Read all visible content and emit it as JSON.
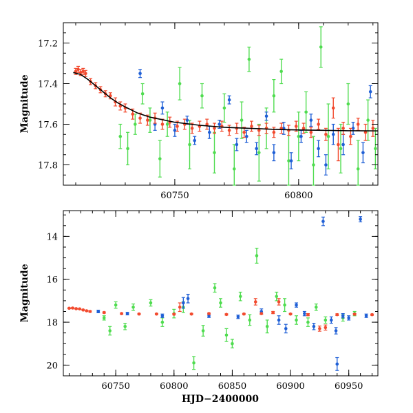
{
  "chart_data": [
    {
      "type": "scatter",
      "panel": "top",
      "title": "",
      "ylabel": "Magnitude",
      "xlabel": "",
      "xlim": [
        60705,
        60832
      ],
      "ylim": [
        17.9,
        17.1
      ],
      "inverted_y": true,
      "x_ticks": [
        60750,
        60800
      ],
      "y_ticks": [
        17.2,
        17.4,
        17.6,
        17.8
      ],
      "colors": {
        "blue": "#1f5fd6",
        "green": "#4fdc4f",
        "red": "#f24a2e",
        "curve": "#000000"
      },
      "series": [
        {
          "name": "model-curve",
          "kind": "line",
          "points": [
            [
              60709,
              17.345
            ],
            [
              60712,
              17.355
            ],
            [
              60715,
              17.38
            ],
            [
              60718,
              17.41
            ],
            [
              60721,
              17.44
            ],
            [
              60724,
              17.47
            ],
            [
              60727,
              17.495
            ],
            [
              60730,
              17.515
            ],
            [
              60735,
              17.545
            ],
            [
              60740,
              17.565
            ],
            [
              60750,
              17.59
            ],
            [
              60760,
              17.605
            ],
            [
              60770,
              17.615
            ],
            [
              60780,
              17.62
            ],
            [
              60790,
              17.625
            ],
            [
              60800,
              17.628
            ],
            [
              60810,
              17.63
            ],
            [
              60820,
              17.632
            ],
            [
              60832,
              17.633
            ]
          ]
        },
        {
          "name": "blue",
          "kind": "errorbar",
          "points": [
            [
              60736,
              17.35,
              0.02
            ],
            [
              60742,
              17.6,
              0.03
            ],
            [
              60745,
              17.52,
              0.03
            ],
            [
              60750,
              17.63,
              0.03
            ],
            [
              60755,
              17.58,
              0.02
            ],
            [
              60758,
              17.68,
              0.02
            ],
            [
              60764,
              17.64,
              0.03
            ],
            [
              60768,
              17.6,
              0.02
            ],
            [
              60772,
              17.48,
              0.02
            ],
            [
              60775,
              17.7,
              0.03
            ],
            [
              60779,
              17.66,
              0.03
            ],
            [
              60783,
              17.72,
              0.03
            ],
            [
              60787,
              17.56,
              0.02
            ],
            [
              60790,
              17.74,
              0.04
            ],
            [
              60794,
              17.62,
              0.03
            ],
            [
              60797,
              17.78,
              0.04
            ],
            [
              60801,
              17.66,
              0.03
            ],
            [
              60805,
              17.58,
              0.03
            ],
            [
              60808,
              17.72,
              0.04
            ],
            [
              60811,
              17.8,
              0.05
            ],
            [
              60814,
              17.65,
              0.05
            ],
            [
              60818,
              17.7,
              0.05
            ],
            [
              60822,
              17.62,
              0.03
            ],
            [
              60826,
              17.74,
              0.05
            ],
            [
              60829,
              17.44,
              0.03
            ]
          ]
        },
        {
          "name": "green",
          "kind": "errorbar",
          "points": [
            [
              60728,
              17.66,
              0.06
            ],
            [
              60731,
              17.72,
              0.08
            ],
            [
              60734,
              17.6,
              0.05
            ],
            [
              60737,
              17.45,
              0.05
            ],
            [
              60740,
              17.58,
              0.06
            ],
            [
              60744,
              17.77,
              0.09
            ],
            [
              60747,
              17.6,
              0.06
            ],
            [
              60752,
              17.4,
              0.08
            ],
            [
              60756,
              17.7,
              0.12
            ],
            [
              60761,
              17.46,
              0.06
            ],
            [
              60766,
              17.74,
              0.1
            ],
            [
              60770,
              17.52,
              0.07
            ],
            [
              60774,
              17.82,
              0.12
            ],
            [
              60777,
              17.58,
              0.09
            ],
            [
              60780,
              17.28,
              0.06
            ],
            [
              60784,
              17.74,
              0.14
            ],
            [
              60787,
              17.62,
              0.1
            ],
            [
              60790,
              17.46,
              0.08
            ],
            [
              60793,
              17.34,
              0.06
            ],
            [
              60796,
              17.78,
              0.15
            ],
            [
              60800,
              17.66,
              0.12
            ],
            [
              60803,
              17.54,
              0.1
            ],
            [
              60806,
              17.8,
              0.14
            ],
            [
              60809,
              17.22,
              0.1
            ],
            [
              60812,
              17.66,
              0.16
            ],
            [
              60817,
              17.72,
              0.12
            ],
            [
              60820,
              17.5,
              0.1
            ],
            [
              60824,
              17.82,
              0.14
            ],
            [
              60828,
              17.58,
              0.1
            ],
            [
              60831,
              17.72,
              0.1
            ]
          ]
        },
        {
          "name": "red",
          "kind": "errorbar",
          "points": [
            [
              60710,
              17.34,
              0.015
            ],
            [
              60711,
              17.33,
              0.015
            ],
            [
              60712,
              17.345,
              0.015
            ],
            [
              60713,
              17.34,
              0.015
            ],
            [
              60714,
              17.35,
              0.015
            ],
            [
              60716,
              17.39,
              0.015
            ],
            [
              60718,
              17.41,
              0.015
            ],
            [
              60720,
              17.43,
              0.015
            ],
            [
              60722,
              17.45,
              0.015
            ],
            [
              60724,
              17.46,
              0.015
            ],
            [
              60726,
              17.49,
              0.02
            ],
            [
              60728,
              17.51,
              0.02
            ],
            [
              60730,
              17.52,
              0.02
            ],
            [
              60733,
              17.55,
              0.025
            ],
            [
              60736,
              17.57,
              0.025
            ],
            [
              60739,
              17.58,
              0.025
            ],
            [
              60742,
              17.57,
              0.025
            ],
            [
              60745,
              17.6,
              0.025
            ],
            [
              60748,
              17.59,
              0.025
            ],
            [
              60751,
              17.61,
              0.025
            ],
            [
              60754,
              17.6,
              0.025
            ],
            [
              60757,
              17.62,
              0.025
            ],
            [
              60760,
              17.61,
              0.025
            ],
            [
              60763,
              17.6,
              0.025
            ],
            [
              60766,
              17.62,
              0.025
            ],
            [
              60769,
              17.61,
              0.025
            ],
            [
              60772,
              17.63,
              0.025
            ],
            [
              60775,
              17.62,
              0.025
            ],
            [
              60778,
              17.64,
              0.025
            ],
            [
              60781,
              17.61,
              0.025
            ],
            [
              60784,
              17.63,
              0.025
            ],
            [
              60787,
              17.62,
              0.025
            ],
            [
              60790,
              17.64,
              0.025
            ],
            [
              60793,
              17.62,
              0.025
            ],
            [
              60796,
              17.63,
              0.025
            ],
            [
              60799,
              17.61,
              0.025
            ],
            [
              60802,
              17.62,
              0.025
            ],
            [
              60805,
              17.64,
              0.025
            ],
            [
              60808,
              17.6,
              0.025
            ],
            [
              60811,
              17.65,
              0.03
            ],
            [
              60814,
              17.52,
              0.05
            ],
            [
              60816,
              17.7,
              0.08
            ],
            [
              60818,
              17.62,
              0.03
            ],
            [
              60821,
              17.66,
              0.04
            ],
            [
              60824,
              17.6,
              0.03
            ],
            [
              60827,
              17.64,
              0.04
            ],
            [
              60830,
              17.62,
              0.04
            ]
          ]
        }
      ]
    },
    {
      "type": "scatter",
      "panel": "bottom",
      "title": "",
      "ylabel": "Magnitude",
      "xlabel": "HJD−2400000",
      "xlim": [
        60705,
        60975
      ],
      "ylim": [
        20.5,
        12.8
      ],
      "inverted_y": true,
      "x_ticks": [
        60750,
        60800,
        60850,
        60900,
        60950
      ],
      "y_ticks": [
        14,
        16,
        18,
        20
      ],
      "colors": {
        "blue": "#1f5fd6",
        "green": "#4fdc4f",
        "red": "#f24a2e"
      },
      "series": [
        {
          "name": "blue",
          "kind": "errorbar",
          "points": [
            [
              60735,
              17.5,
              0.06
            ],
            [
              60760,
              17.6,
              0.06
            ],
            [
              60790,
              17.7,
              0.08
            ],
            [
              60808,
              17.1,
              0.25
            ],
            [
              60812,
              16.9,
              0.2
            ],
            [
              60830,
              17.7,
              0.08
            ],
            [
              60855,
              17.75,
              0.08
            ],
            [
              60875,
              17.5,
              0.12
            ],
            [
              60890,
              17.9,
              0.2
            ],
            [
              60896,
              18.3,
              0.2
            ],
            [
              60905,
              17.2,
              0.1
            ],
            [
              60912,
              17.6,
              0.1
            ],
            [
              60920,
              18.2,
              0.15
            ],
            [
              60928,
              13.3,
              0.2
            ],
            [
              60935,
              17.9,
              0.15
            ],
            [
              60939,
              18.4,
              0.15
            ],
            [
              60940,
              19.95,
              0.3
            ],
            [
              60945,
              17.7,
              0.1
            ],
            [
              60950,
              17.8,
              0.1
            ],
            [
              60960,
              13.2,
              0.12
            ],
            [
              60965,
              17.7,
              0.08
            ]
          ]
        },
        {
          "name": "green",
          "kind": "errorbar",
          "points": [
            [
              60740,
              17.8,
              0.1
            ],
            [
              60745,
              18.4,
              0.2
            ],
            [
              60750,
              17.2,
              0.15
            ],
            [
              60758,
              18.2,
              0.15
            ],
            [
              60765,
              17.3,
              0.15
            ],
            [
              60780,
              17.1,
              0.15
            ],
            [
              60790,
              18.0,
              0.2
            ],
            [
              60800,
              17.6,
              0.2
            ],
            [
              60808,
              17.3,
              0.25
            ],
            [
              60817,
              19.9,
              0.3
            ],
            [
              60825,
              18.4,
              0.25
            ],
            [
              60835,
              16.4,
              0.2
            ],
            [
              60840,
              17.1,
              0.2
            ],
            [
              60845,
              18.6,
              0.3
            ],
            [
              60850,
              19.0,
              0.2
            ],
            [
              60857,
              16.8,
              0.2
            ],
            [
              60865,
              17.9,
              0.25
            ],
            [
              60871,
              14.9,
              0.35
            ],
            [
              60880,
              18.2,
              0.3
            ],
            [
              60888,
              16.8,
              0.2
            ],
            [
              60895,
              17.2,
              0.3
            ],
            [
              60905,
              17.9,
              0.2
            ],
            [
              60915,
              18.0,
              0.2
            ],
            [
              60922,
              17.3,
              0.15
            ],
            [
              60930,
              17.9,
              0.15
            ],
            [
              60945,
              17.8,
              0.15
            ],
            [
              60955,
              17.6,
              0.1
            ]
          ]
        },
        {
          "name": "red",
          "kind": "errorbar",
          "points": [
            [
              60710,
              17.35,
              0.02
            ],
            [
              60713,
              17.34,
              0.02
            ],
            [
              60716,
              17.37,
              0.02
            ],
            [
              60719,
              17.38,
              0.02
            ],
            [
              60722,
              17.43,
              0.02
            ],
            [
              60725,
              17.47,
              0.02
            ],
            [
              60728,
              17.5,
              0.03
            ],
            [
              60740,
              17.55,
              0.03
            ],
            [
              60755,
              17.6,
              0.03
            ],
            [
              60770,
              17.62,
              0.03
            ],
            [
              60785,
              17.62,
              0.03
            ],
            [
              60800,
              17.63,
              0.03
            ],
            [
              60805,
              17.3,
              0.2
            ],
            [
              60815,
              17.62,
              0.03
            ],
            [
              60830,
              17.6,
              0.03
            ],
            [
              60845,
              17.64,
              0.03
            ],
            [
              60860,
              17.62,
              0.03
            ],
            [
              60870,
              17.05,
              0.15
            ],
            [
              60875,
              17.6,
              0.03
            ],
            [
              60885,
              17.55,
              0.05
            ],
            [
              60890,
              17.05,
              0.15
            ],
            [
              60900,
              17.62,
              0.03
            ],
            [
              60915,
              17.65,
              0.05
            ],
            [
              60925,
              18.3,
              0.12
            ],
            [
              60930,
              18.25,
              0.12
            ],
            [
              60940,
              17.65,
              0.04
            ],
            [
              60955,
              17.63,
              0.03
            ],
            [
              60970,
              17.65,
              0.03
            ]
          ]
        }
      ]
    }
  ]
}
